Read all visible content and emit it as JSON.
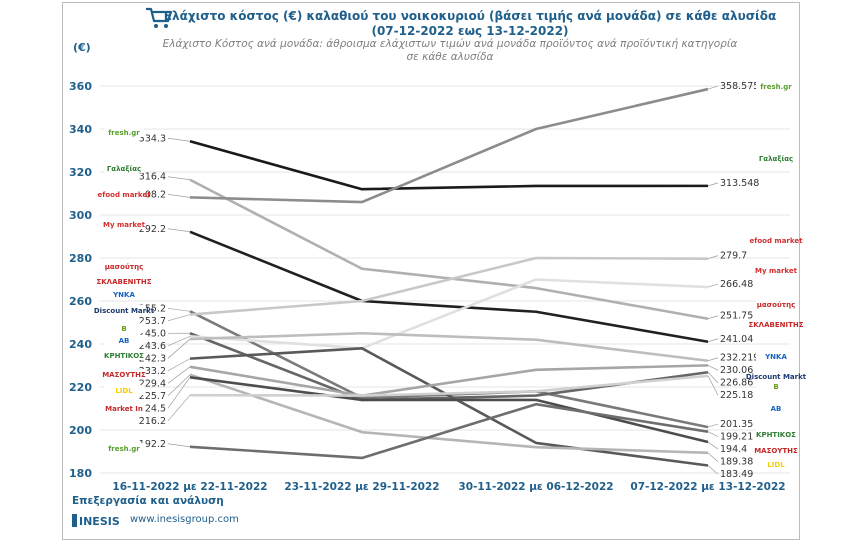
{
  "header": {
    "title_line1": "Ελάχιστο κόστος (€) καλαθιού του νοικοκυριού (βάσει τιμής ανά μονάδα) σε κάθε αλυσίδα",
    "title_line2": "(07-12-2022 εως 13-12-2022)",
    "subtitle_line1": "Ελάχιστο Κόστος ανά μονάδα: άθροισμα ελάχιστων τιμών ανά μονάδα προϊόντος ανά προϊόντική κατηγορία",
    "subtitle_line2": "σε κάθε αλυσίδα",
    "unit": "(€)"
  },
  "footer": {
    "processing": "Επεξεργασία και ανάλυση",
    "brand": "INESIS",
    "url": "www.inesisgroup.com"
  },
  "logos": [
    {
      "name": "fresh-gr-logo",
      "text": "fresh.gr",
      "color": "#5a9e2f"
    },
    {
      "name": "galaxias-logo",
      "text": "Γαλαξίας",
      "color": "#2e7d32"
    },
    {
      "name": "efood-market-logo",
      "text": "efood market",
      "color": "#d32f2f"
    },
    {
      "name": "my-market-logo",
      "text": "My market",
      "color": "#d32f2f"
    },
    {
      "name": "masoutis-logo",
      "text": "μασούτης",
      "color": "#c62828"
    },
    {
      "name": "sklavenitis-logo",
      "text": "ΣΚΛΑΒΕΝΙΤΗΣ",
      "color": "#c62828"
    },
    {
      "name": "ynka-logo",
      "text": "ΥΝΚΑ",
      "color": "#1565c0"
    },
    {
      "name": "discount-markt-logo",
      "text": "Discount Markt",
      "color": "#1a3a6e"
    },
    {
      "name": "bazaar-logo",
      "text": "B",
      "color": "#6a9a1e"
    },
    {
      "name": "ab-logo",
      "text": "AB",
      "color": "#1565c0"
    },
    {
      "name": "kritikos-logo",
      "text": "ΚΡΗΤΙΚΟΣ",
      "color": "#2e7d32"
    },
    {
      "name": "masoutis-2-logo",
      "text": "ΜΑΣΟΥΤΗΣ",
      "color": "#c62828"
    },
    {
      "name": "lidl-logo",
      "text": "LIDL",
      "color": "#f5d000"
    },
    {
      "name": "market-in-logo",
      "text": "Market In",
      "color": "#c62828"
    }
  ],
  "chart_data": {
    "type": "line",
    "categories": [
      "16-11-2022 με 22-11-2022",
      "23-11-2022 με 29-11-2022",
      "30-11-2022 με 06-12-2022",
      "07-12-2022 με 13-12-2022"
    ],
    "ylim": [
      180,
      360
    ],
    "yticks": [
      180,
      200,
      220,
      240,
      260,
      280,
      300,
      320,
      340,
      360
    ],
    "grid": true,
    "series": [
      {
        "values": [
          334.3,
          312.0,
          313.5,
          313.548
        ],
        "color": "#1a1a1a",
        "label_first": "334.3",
        "label_last": "313.548"
      },
      {
        "values": [
          316.4,
          275.0,
          266.0,
          251.75
        ],
        "color": "#b0b0b0",
        "label_first": "316.4",
        "label_last": "251.75"
      },
      {
        "values": [
          308.2,
          306.0,
          340.0,
          358.575
        ],
        "color": "#8c8c8c",
        "label_first": "308.2",
        "label_last": "358.575"
      },
      {
        "values": [
          292.2,
          260.0,
          255.0,
          241.04
        ],
        "color": "#202020",
        "label_first": "292.2",
        "label_last": "241.04"
      },
      {
        "values": [
          255.2,
          215.0,
          218.0,
          201.35
        ],
        "color": "#7a7a7a",
        "label_first": "255.2",
        "label_last": "201.35"
      },
      {
        "values": [
          253.7,
          260.0,
          280.0,
          279.7
        ],
        "color": "#c8c8c8",
        "label_first": "253.7",
        "label_last": "279.7"
      },
      {
        "values": [
          245.0,
          214.0,
          216.0,
          226.86
        ],
        "color": "#666666",
        "label_first": "245.0",
        "label_last": "226.86"
      },
      {
        "values": [
          243.6,
          238.0,
          270.0,
          266.48
        ],
        "color": "#e0e0e0",
        "label_first": "243.6",
        "label_last": "266.48"
      },
      {
        "values": [
          242.3,
          245.0,
          242.0,
          232.219
        ],
        "color": "#bdbdbd",
        "label_first": "242.3",
        "label_last": "232.219"
      },
      {
        "values": [
          233.2,
          238.0,
          194.0,
          183.49
        ],
        "color": "#595959",
        "label_first": "233.2",
        "label_last": "183.49"
      },
      {
        "values": [
          229.4,
          216.0,
          228.0,
          230.06
        ],
        "color": "#a6a6a6",
        "label_first": "229.4",
        "label_last": "230.06"
      },
      {
        "values": [
          225.7,
          199.0,
          192.0,
          189.38
        ],
        "color": "#b5b5b5",
        "label_first": "225.7",
        "label_last": "189.38"
      },
      {
        "values": [
          224.5,
          214.0,
          214.0,
          194.4
        ],
        "color": "#4d4d4d",
        "label_first": "224.5",
        "label_last": "194.4"
      },
      {
        "values": [
          216.2,
          216.0,
          218.0,
          225.18
        ],
        "color": "#d0d0d0",
        "label_first": "216.2",
        "label_last": "225.18"
      },
      {
        "values": [
          192.2,
          187.0,
          212.0,
          199.21
        ],
        "color": "#6e6e6e",
        "label_first": "192.2",
        "label_last": "199.21"
      }
    ]
  }
}
